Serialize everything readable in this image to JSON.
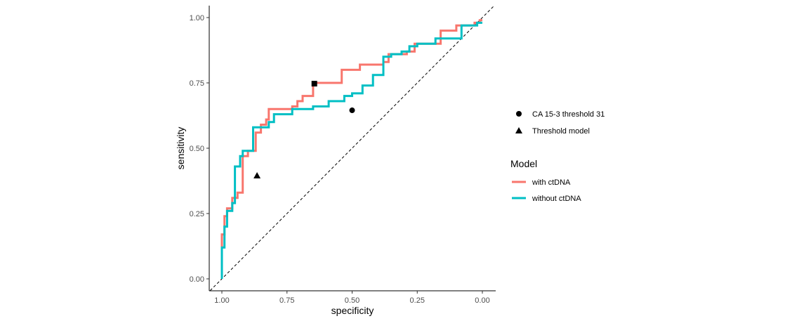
{
  "chart_data": {
    "type": "line",
    "title": "",
    "xlabel": "specificity",
    "ylabel": "sensitivity",
    "x_reversed": true,
    "xlim": [
      1.0,
      0.0
    ],
    "ylim": [
      0.0,
      1.0
    ],
    "x_ticks": [
      1.0,
      0.75,
      0.5,
      0.25,
      0.0
    ],
    "x_tick_labels": [
      "1.00",
      "0.75",
      "0.50",
      "0.25",
      "0.00"
    ],
    "y_ticks": [
      0.0,
      0.25,
      0.5,
      0.75,
      1.0
    ],
    "y_tick_labels": [
      "0.00",
      "0.25",
      "0.50",
      "0.75",
      "1.00"
    ],
    "grid": false,
    "legend_position": "right",
    "legend_title": "Model",
    "series": [
      {
        "name": "with ctDNA",
        "color": "#F8766D",
        "step_points": [
          [
            1.0,
            0.0
          ],
          [
            1.0,
            0.17
          ],
          [
            0.99,
            0.17
          ],
          [
            0.99,
            0.24
          ],
          [
            0.98,
            0.24
          ],
          [
            0.98,
            0.27
          ],
          [
            0.96,
            0.27
          ],
          [
            0.96,
            0.31
          ],
          [
            0.94,
            0.31
          ],
          [
            0.94,
            0.33
          ],
          [
            0.92,
            0.33
          ],
          [
            0.92,
            0.47
          ],
          [
            0.9,
            0.47
          ],
          [
            0.9,
            0.49
          ],
          [
            0.88,
            0.49
          ],
          [
            0.87,
            0.49
          ],
          [
            0.87,
            0.56
          ],
          [
            0.85,
            0.56
          ],
          [
            0.85,
            0.59
          ],
          [
            0.83,
            0.59
          ],
          [
            0.83,
            0.61
          ],
          [
            0.82,
            0.61
          ],
          [
            0.82,
            0.65
          ],
          [
            0.73,
            0.65
          ],
          [
            0.73,
            0.66
          ],
          [
            0.71,
            0.66
          ],
          [
            0.71,
            0.68
          ],
          [
            0.69,
            0.68
          ],
          [
            0.69,
            0.7
          ],
          [
            0.65,
            0.7
          ],
          [
            0.65,
            0.75
          ],
          [
            0.62,
            0.75
          ],
          [
            0.54,
            0.75
          ],
          [
            0.54,
            0.8
          ],
          [
            0.47,
            0.8
          ],
          [
            0.47,
            0.82
          ],
          [
            0.38,
            0.82
          ],
          [
            0.38,
            0.83
          ],
          [
            0.36,
            0.83
          ],
          [
            0.36,
            0.86
          ],
          [
            0.29,
            0.86
          ],
          [
            0.29,
            0.87
          ],
          [
            0.26,
            0.87
          ],
          [
            0.26,
            0.9
          ],
          [
            0.16,
            0.9
          ],
          [
            0.16,
            0.95
          ],
          [
            0.1,
            0.95
          ],
          [
            0.1,
            0.97
          ],
          [
            0.03,
            0.97
          ],
          [
            0.03,
            0.98
          ],
          [
            0.01,
            0.98
          ],
          [
            0.01,
            0.99
          ],
          [
            0.0,
            0.99
          ]
        ]
      },
      {
        "name": "without ctDNA",
        "color": "#00BFC4",
        "step_points": [
          [
            1.0,
            0.0
          ],
          [
            1.0,
            0.12
          ],
          [
            0.99,
            0.12
          ],
          [
            0.99,
            0.2
          ],
          [
            0.98,
            0.2
          ],
          [
            0.98,
            0.26
          ],
          [
            0.96,
            0.26
          ],
          [
            0.96,
            0.29
          ],
          [
            0.95,
            0.29
          ],
          [
            0.95,
            0.43
          ],
          [
            0.93,
            0.43
          ],
          [
            0.93,
            0.47
          ],
          [
            0.92,
            0.47
          ],
          [
            0.92,
            0.49
          ],
          [
            0.88,
            0.49
          ],
          [
            0.88,
            0.58
          ],
          [
            0.82,
            0.58
          ],
          [
            0.82,
            0.6
          ],
          [
            0.8,
            0.6
          ],
          [
            0.8,
            0.63
          ],
          [
            0.73,
            0.63
          ],
          [
            0.73,
            0.65
          ],
          [
            0.65,
            0.65
          ],
          [
            0.65,
            0.66
          ],
          [
            0.59,
            0.66
          ],
          [
            0.59,
            0.68
          ],
          [
            0.53,
            0.68
          ],
          [
            0.53,
            0.7
          ],
          [
            0.5,
            0.7
          ],
          [
            0.5,
            0.71
          ],
          [
            0.46,
            0.71
          ],
          [
            0.46,
            0.74
          ],
          [
            0.42,
            0.74
          ],
          [
            0.42,
            0.78
          ],
          [
            0.38,
            0.78
          ],
          [
            0.38,
            0.85
          ],
          [
            0.35,
            0.85
          ],
          [
            0.35,
            0.86
          ],
          [
            0.31,
            0.86
          ],
          [
            0.31,
            0.87
          ],
          [
            0.28,
            0.87
          ],
          [
            0.28,
            0.89
          ],
          [
            0.25,
            0.89
          ],
          [
            0.25,
            0.9
          ],
          [
            0.18,
            0.9
          ],
          [
            0.18,
            0.92
          ],
          [
            0.08,
            0.92
          ],
          [
            0.08,
            0.97
          ],
          [
            0.02,
            0.97
          ],
          [
            0.02,
            0.98
          ],
          [
            0.0,
            0.98
          ]
        ]
      }
    ],
    "reference_line": {
      "from": [
        1.0,
        0.0
      ],
      "to": [
        0.0,
        1.0
      ],
      "style": "dashed",
      "color": "#000000"
    },
    "points": [
      {
        "label": "CA 15-3 threshold 31",
        "shape": "circle",
        "x": 0.5,
        "y": 0.645
      },
      {
        "label": "Threshold model",
        "shape": "triangle",
        "x": 0.865,
        "y": 0.395
      },
      {
        "label": "",
        "shape": "square",
        "x": 0.645,
        "y": 0.747
      }
    ],
    "shape_legend": [
      {
        "label": "CA 15-3 threshold 31",
        "shape": "circle"
      },
      {
        "label": "Threshold model",
        "shape": "triangle"
      }
    ]
  }
}
